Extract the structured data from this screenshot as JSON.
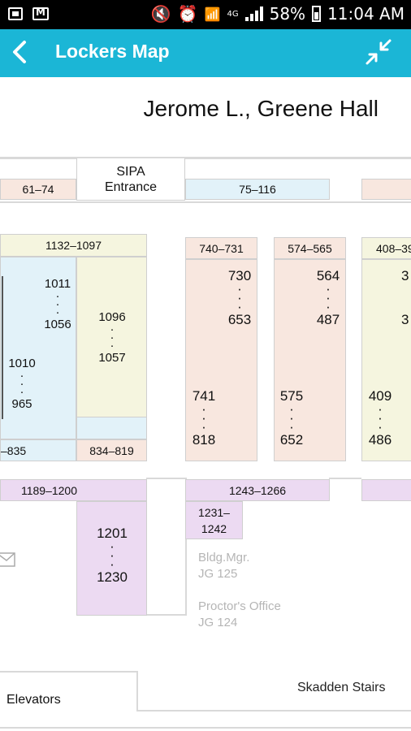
{
  "status_bar": {
    "battery": "58%",
    "time": "11:04 AM",
    "network": "4G"
  },
  "app_bar": {
    "title": "Lockers Map",
    "back_icon": "chevron-left-icon",
    "collapse_icon": "collapse-arrows-icon"
  },
  "building_title": "Jerome L., Greene Hall",
  "map": {
    "entrance": "SIPA\nEntrance",
    "top_row": [
      "61–74",
      "75–116"
    ],
    "block_1132": "1132–1097",
    "stack_1011": [
      "1011",
      "·",
      "·",
      "·",
      "1056"
    ],
    "stack_1010": [
      "1010",
      "·",
      "·",
      "·",
      "965"
    ],
    "stack_1096": [
      "1096",
      "·",
      "·",
      "·",
      "1057"
    ],
    "row_835": "–835",
    "row_834": "834–819",
    "col_740": {
      "header": "740–731",
      "upper": [
        "730",
        "·",
        "·",
        "·",
        "653"
      ],
      "lower": [
        "741",
        "·",
        "·",
        "·",
        "818"
      ]
    },
    "col_574": {
      "header": "574–565",
      "upper": [
        "564",
        "·",
        "·",
        "·",
        "487"
      ],
      "lower": [
        "575",
        "·",
        "·",
        "·",
        "652"
      ]
    },
    "col_408": {
      "header": "408–39",
      "upper": [
        "3",
        "",
        "",
        "",
        "3"
      ],
      "lower": [
        "409",
        "·",
        "·",
        "·",
        "486"
      ]
    },
    "row_1189": "1189–1200",
    "stack_1201": [
      "1201",
      "·",
      "·",
      "·",
      "1230"
    ],
    "row_1243": "1243–1266",
    "box_1231": "1231–\n1242",
    "bldg_mgr": {
      "name": "Bldg.Mgr.",
      "room": "JG 125"
    },
    "proctor": {
      "name": "Proctor's Office",
      "room": "JG 124"
    },
    "elevators": "Elevators",
    "skadden": "Skadden Stairs"
  },
  "colors": {
    "app_bar": "#1bb6d6",
    "pink": "#f8e7df",
    "blue": "#e2f2f9",
    "yellow": "#f5f5df",
    "purple": "#ecdaf2"
  }
}
